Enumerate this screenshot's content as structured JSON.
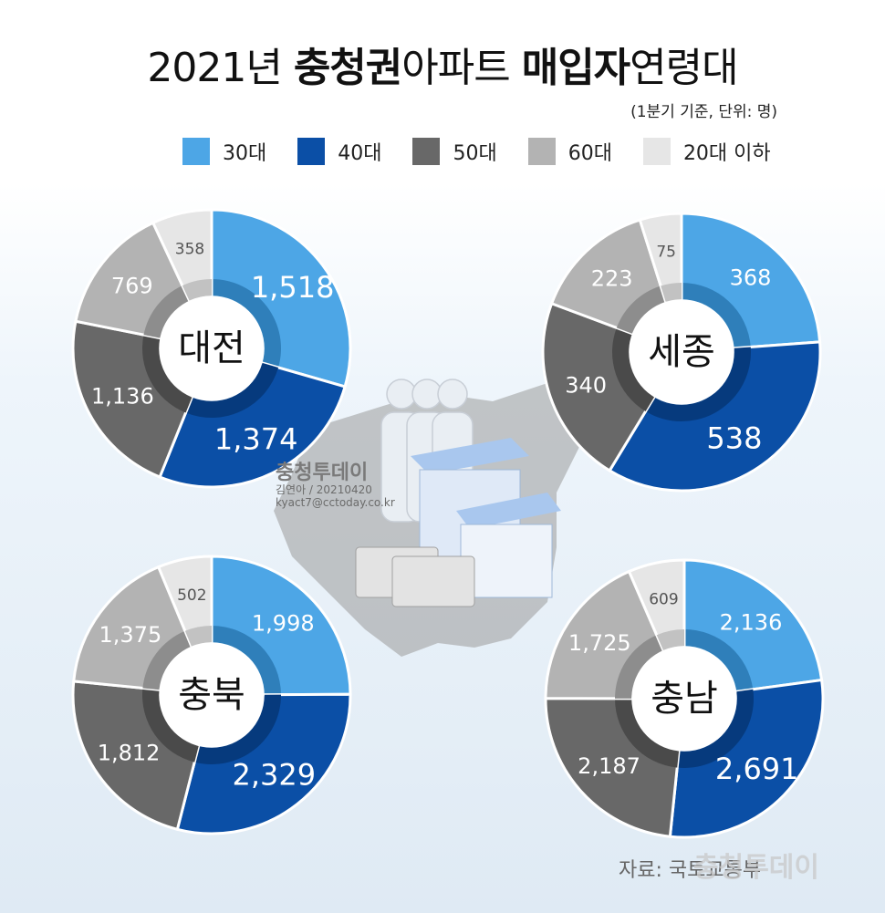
{
  "title": {
    "year": "2021년 ",
    "region": "충청권",
    "mid": "아파트 ",
    "buyer": "매입자",
    "tail": "연령대"
  },
  "subtitle": "(1분기 기준, 단위: 명)",
  "legend": [
    {
      "label": "30대",
      "color": "#4da6e6"
    },
    {
      "label": "40대",
      "color": "#0b4fa6"
    },
    {
      "label": "50대",
      "color": "#686868"
    },
    {
      "label": "60대",
      "color": "#b3b3b3"
    },
    {
      "label": "20대 이하",
      "color": "#e6e6e6"
    }
  ],
  "credit": {
    "name": "충청투데이",
    "author": "김연아 / 20210420",
    "email": "kyact7@cctoday.co.kr"
  },
  "source": "자료: 국토교통부",
  "watermark": "충청투데이",
  "chart_data": {
    "type": "pie",
    "variant": "donut",
    "series_order": [
      "30대",
      "40대",
      "50대",
      "60대",
      "20대 이하"
    ],
    "charts": [
      {
        "name": "대전",
        "values": [
          1518,
          1374,
          1136,
          769,
          358
        ],
        "labels": [
          "1,518",
          "1,374",
          "1,136",
          "769",
          "358"
        ]
      },
      {
        "name": "세종",
        "values": [
          368,
          538,
          340,
          223,
          75
        ],
        "labels": [
          "368",
          "538",
          "340",
          "223",
          "75"
        ]
      },
      {
        "name": "충북",
        "values": [
          1998,
          2329,
          1812,
          1375,
          502
        ],
        "labels": [
          "1,998",
          "2,329",
          "1,812",
          "1,375",
          "502"
        ]
      },
      {
        "name": "충남",
        "values": [
          2136,
          2691,
          2187,
          1725,
          609
        ],
        "labels": [
          "2,136",
          "2,691",
          "2,187",
          "1,725",
          "609"
        ]
      }
    ]
  }
}
